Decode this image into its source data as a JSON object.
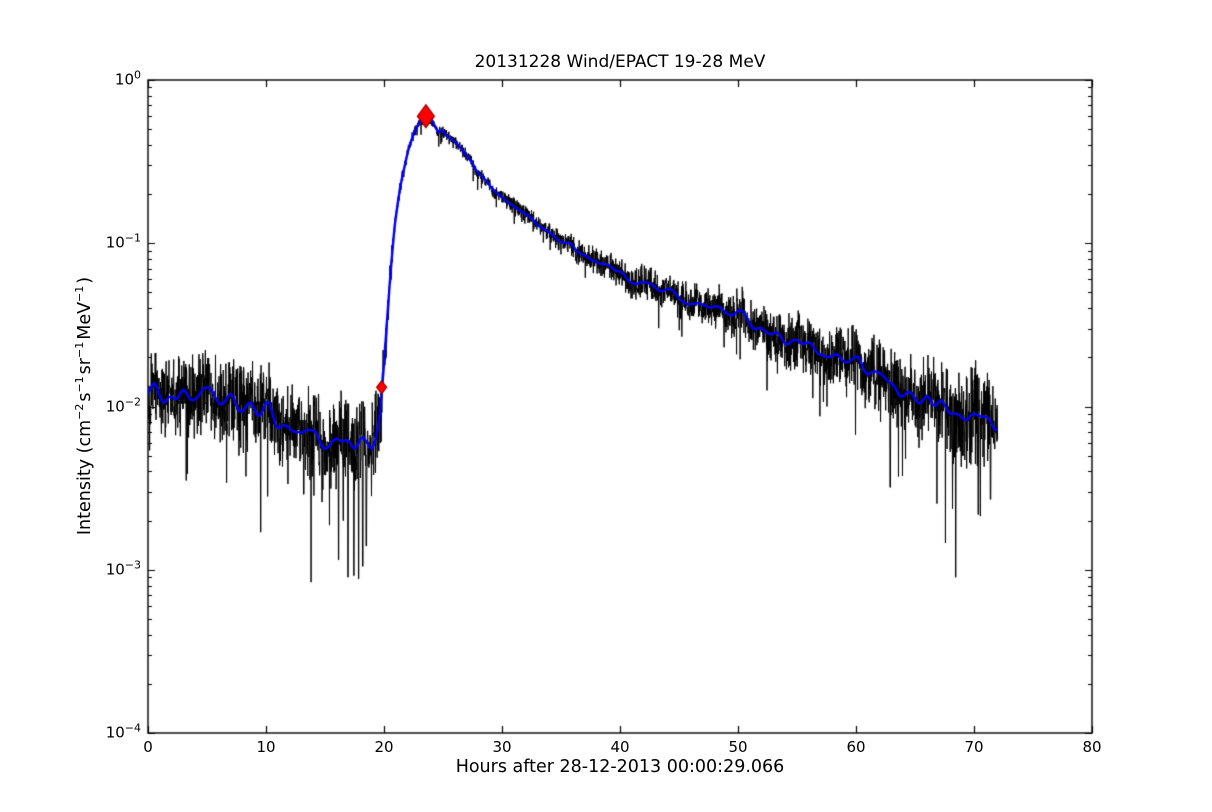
{
  "figure": {
    "background": "#ffffff"
  },
  "chart_data": {
    "type": "line",
    "title": "20131228 Wind/EPACT 19-28 MeV",
    "xlabel": "Hours after 28-12-2013 00:00:29.066",
    "ylabel_parts": [
      {
        "t": "text",
        "v": "Intensity (cm"
      },
      {
        "t": "sup",
        "v": "−2"
      },
      {
        "t": "text",
        "v": "s"
      },
      {
        "t": "sup",
        "v": "−1"
      },
      {
        "t": "text",
        "v": "sr"
      },
      {
        "t": "sup",
        "v": "−1"
      },
      {
        "t": "text",
        "v": "MeV"
      },
      {
        "t": "sup",
        "v": "−1"
      },
      {
        "t": "text",
        "v": ")"
      }
    ],
    "x_axis": {
      "min": 0,
      "max": 80,
      "ticks": [
        0,
        10,
        20,
        30,
        40,
        50,
        60,
        70,
        80
      ],
      "minor_ticks": false
    },
    "y_axis": {
      "scale": "log",
      "min": 0.0001,
      "max": 1.0,
      "ticks": [
        {
          "base": "10",
          "exp": "0",
          "log": 0
        },
        {
          "base": "10",
          "exp": "-1",
          "log": -1
        },
        {
          "base": "10",
          "exp": "-2",
          "log": -2
        },
        {
          "base": "10",
          "exp": "-3",
          "log": -3
        },
        {
          "base": "10",
          "exp": "-4",
          "log": -4
        }
      ],
      "log_minor_ticks": true
    },
    "grid": false,
    "legend": null,
    "data_end_hours": 72,
    "series": [
      {
        "name": "raw intensity",
        "color": "#000000",
        "style": "noisy",
        "linewidth": 1
      },
      {
        "name": "smoothed intensity",
        "color": "#0000ff",
        "style": "smooth",
        "linewidth": 2.4,
        "anchors": [
          [
            0,
            0.0128
          ],
          [
            0.5,
            0.0125
          ],
          [
            1,
            0.0123
          ],
          [
            1.5,
            0.0119
          ],
          [
            2,
            0.0121
          ],
          [
            2.5,
            0.0117
          ],
          [
            3,
            0.012
          ],
          [
            3.5,
            0.0115
          ],
          [
            4,
            0.0117
          ],
          [
            4.5,
            0.0113
          ],
          [
            5,
            0.0111
          ],
          [
            5.5,
            0.0108
          ],
          [
            6,
            0.0107
          ],
          [
            6.5,
            0.0105
          ],
          [
            7,
            0.0103
          ],
          [
            7.5,
            0.01
          ],
          [
            8,
            0.0099
          ],
          [
            8.5,
            0.0097
          ],
          [
            9,
            0.0094
          ],
          [
            9.5,
            0.0093
          ],
          [
            10,
            0.009
          ],
          [
            10.5,
            0.0088
          ],
          [
            11,
            0.0086
          ],
          [
            11.5,
            0.0082
          ],
          [
            12,
            0.0078
          ],
          [
            12.5,
            0.0072
          ],
          [
            13,
            0.007
          ],
          [
            13.5,
            0.0073
          ],
          [
            14,
            0.007
          ],
          [
            14.5,
            0.0064
          ],
          [
            15,
            0.006
          ],
          [
            15.5,
            0.0058
          ],
          [
            16,
            0.0056
          ],
          [
            16.5,
            0.0054
          ],
          [
            17,
            0.0054
          ],
          [
            17.5,
            0.0052
          ],
          [
            18,
            0.0054
          ],
          [
            18.5,
            0.0052
          ],
          [
            19,
            0.0058
          ],
          [
            19.3,
            0.007
          ],
          [
            19.6,
            0.0095
          ],
          [
            19.8,
            0.0131
          ],
          [
            20,
            0.019
          ],
          [
            20.3,
            0.036
          ],
          [
            20.6,
            0.07
          ],
          [
            20.9,
            0.125
          ],
          [
            21.2,
            0.185
          ],
          [
            21.5,
            0.25
          ],
          [
            21.8,
            0.31
          ],
          [
            22.1,
            0.38
          ],
          [
            22.5,
            0.46
          ],
          [
            22.9,
            0.53
          ],
          [
            23.2,
            0.57
          ],
          [
            23.55,
            0.6
          ],
          [
            23.8,
            0.575
          ],
          [
            24.1,
            0.545
          ],
          [
            24.4,
            0.505
          ],
          [
            24.6,
            0.47
          ],
          [
            24.9,
            0.485
          ],
          [
            25.3,
            0.455
          ],
          [
            25.8,
            0.425
          ],
          [
            26.3,
            0.395
          ],
          [
            27,
            0.345
          ],
          [
            27.5,
            0.315
          ],
          [
            28,
            0.27
          ],
          [
            28.5,
            0.248
          ],
          [
            29,
            0.226
          ],
          [
            29.5,
            0.205
          ],
          [
            30,
            0.19
          ],
          [
            30.5,
            0.178
          ],
          [
            31,
            0.169
          ],
          [
            31.5,
            0.158
          ],
          [
            32,
            0.149
          ],
          [
            32.5,
            0.14
          ],
          [
            33,
            0.131
          ],
          [
            33.5,
            0.124
          ],
          [
            34,
            0.117
          ],
          [
            34.5,
            0.11
          ],
          [
            35,
            0.104
          ],
          [
            35.5,
            0.099
          ],
          [
            36,
            0.094
          ],
          [
            36.5,
            0.09
          ],
          [
            37,
            0.086
          ],
          [
            37.5,
            0.082
          ],
          [
            38,
            0.079
          ],
          [
            38.5,
            0.075
          ],
          [
            39,
            0.072
          ],
          [
            39.5,
            0.069
          ],
          [
            40,
            0.066
          ],
          [
            41,
            0.061
          ],
          [
            42,
            0.057
          ],
          [
            43,
            0.053
          ],
          [
            44,
            0.05
          ],
          [
            45,
            0.047
          ],
          [
            46,
            0.0445
          ],
          [
            47,
            0.042
          ],
          [
            48,
            0.04
          ],
          [
            49,
            0.038
          ],
          [
            50,
            0.036
          ],
          [
            51,
            0.0335
          ],
          [
            52,
            0.031
          ],
          [
            53,
            0.0285
          ],
          [
            54,
            0.0265
          ],
          [
            55,
            0.0245
          ],
          [
            56,
            0.0228
          ],
          [
            57,
            0.0212
          ],
          [
            58,
            0.0198
          ],
          [
            59,
            0.0185
          ],
          [
            60,
            0.0172
          ],
          [
            61,
            0.016
          ],
          [
            62,
            0.0149
          ],
          [
            63,
            0.0137
          ],
          [
            64,
            0.0126
          ],
          [
            65,
            0.0115
          ],
          [
            66,
            0.0106
          ],
          [
            67,
            0.0098
          ],
          [
            68,
            0.0091
          ],
          [
            69,
            0.0088
          ],
          [
            70,
            0.0085
          ],
          [
            71,
            0.0083
          ],
          [
            72,
            0.0082
          ]
        ]
      }
    ],
    "noise_spikes": [
      [
        9.55,
        0.0017
      ],
      [
        13.2,
        0.0029
      ],
      [
        14.75,
        0.0026
      ],
      [
        15.05,
        0.0038
      ],
      [
        16.15,
        0.00115
      ],
      [
        16.55,
        0.002
      ],
      [
        16.95,
        0.0009
      ],
      [
        17.45,
        0.00092
      ],
      [
        17.85,
        0.00088
      ],
      [
        18.2,
        0.00105
      ],
      [
        18.5,
        0.0014
      ],
      [
        62.9,
        0.0032
      ],
      [
        68.45,
        0.0009
      ],
      [
        71.4,
        0.0027
      ]
    ],
    "markers": [
      {
        "name": "onset-marker",
        "shape": "diamond",
        "hours": 19.8,
        "intensity": 0.0131,
        "size": "small",
        "color": "#ff0000",
        "edge_color": "#990000"
      },
      {
        "name": "peak-marker",
        "shape": "diamond",
        "hours": 23.55,
        "intensity": 0.6,
        "size": "large",
        "color": "#ff0000",
        "edge_color": "#990000"
      }
    ],
    "colors": {
      "raw": "#000000",
      "smoothed": "#0000ff",
      "marker": "#ff0000",
      "frame": "#000000"
    }
  }
}
